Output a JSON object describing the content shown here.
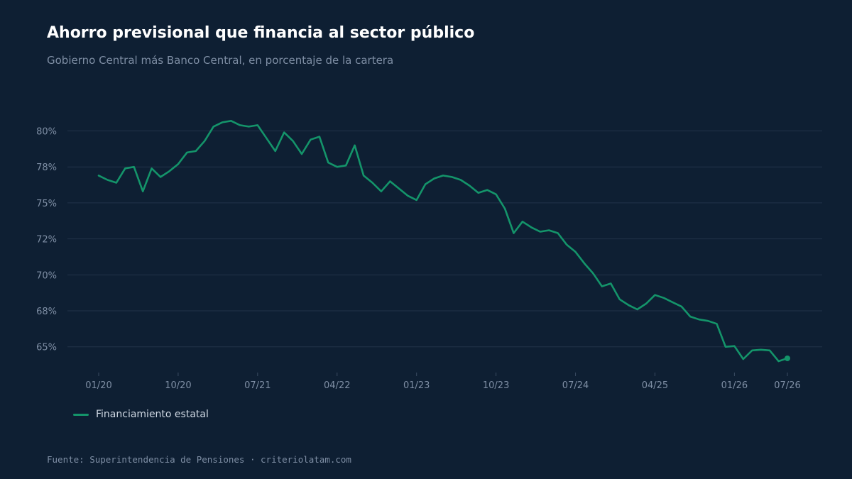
{
  "header": {
    "title": "Ahorro previsional que financia al sector público",
    "subtitle": "Gobierno Central más Banco Central, en porcentaje de la cartera"
  },
  "footer": {
    "source": "Fuente: Superintendencia de Pensiones · criteriolatam.com"
  },
  "colors": {
    "background": "#0e1f33",
    "series": "#14946a",
    "grid": "#22334a",
    "text_muted": "#7e8ea4"
  },
  "chart_data": {
    "type": "line",
    "title": "Ahorro previsional que financia al sector público",
    "subtitle": "Gobierno Central más Banco Central, en porcentaje de la cartera",
    "xlabel": "",
    "ylabel": "",
    "ylim": [
      64.0,
      81.9
    ],
    "xlim": [
      "2020-01",
      "2026-07"
    ],
    "y_ticks": [
      65,
      67.5,
      70,
      72.5,
      75,
      77.5,
      80
    ],
    "y_tick_labels": [
      "65%",
      "68%",
      "70%",
      "72%",
      "75%",
      "78%",
      "80%"
    ],
    "x_ticks": [
      "2020-01",
      "2020-10",
      "2021-07",
      "2022-04",
      "2023-01",
      "2023-10",
      "2024-07",
      "2025-04",
      "2026-01",
      "2026-07"
    ],
    "x_tick_labels": [
      "01/20",
      "10/20",
      "07/21",
      "04/22",
      "01/23",
      "10/23",
      "07/24",
      "04/25",
      "01/26",
      "07/26"
    ],
    "grid": true,
    "legend_position": "bottom-left",
    "end_marker": true,
    "series": [
      {
        "name": "Financiamiento estatal",
        "color": "#14946a",
        "x": [
          "2020-01",
          "2020-02",
          "2020-03",
          "2020-04",
          "2020-05",
          "2020-06",
          "2020-07",
          "2020-08",
          "2020-09",
          "2020-10",
          "2020-11",
          "2020-12",
          "2021-01",
          "2021-02",
          "2021-03",
          "2021-04",
          "2021-05",
          "2021-06",
          "2021-07",
          "2021-08",
          "2021-09",
          "2021-10",
          "2021-11",
          "2021-12",
          "2022-01",
          "2022-02",
          "2022-03",
          "2022-04",
          "2022-05",
          "2022-06",
          "2022-07",
          "2022-08",
          "2022-09",
          "2022-10",
          "2022-11",
          "2022-12",
          "2023-01",
          "2023-02",
          "2023-03",
          "2023-04",
          "2023-05",
          "2023-06",
          "2023-07",
          "2023-08",
          "2023-09",
          "2023-10",
          "2023-11",
          "2023-12",
          "2024-01",
          "2024-02",
          "2024-03",
          "2024-04",
          "2024-05",
          "2024-06",
          "2024-07",
          "2024-08",
          "2024-09",
          "2024-10",
          "2024-11",
          "2024-12",
          "2025-01",
          "2025-02",
          "2025-03",
          "2025-04",
          "2025-05",
          "2025-06",
          "2025-07",
          "2025-08",
          "2025-09",
          "2025-10",
          "2025-11",
          "2025-12",
          "2026-01",
          "2026-02",
          "2026-03",
          "2026-04",
          "2026-05",
          "2026-06",
          "2026-07"
        ],
        "values": [
          76.9,
          76.6,
          76.4,
          77.4,
          77.5,
          75.8,
          77.4,
          76.8,
          77.2,
          77.7,
          78.5,
          78.6,
          79.3,
          80.3,
          80.6,
          80.7,
          80.4,
          80.3,
          80.4,
          79.5,
          78.6,
          79.9,
          79.3,
          78.4,
          79.4,
          79.6,
          77.8,
          77.5,
          77.6,
          79.0,
          76.9,
          76.4,
          75.8,
          76.5,
          76.0,
          75.5,
          75.2,
          76.3,
          76.7,
          76.9,
          76.8,
          76.6,
          76.2,
          75.7,
          75.9,
          75.6,
          74.6,
          72.9,
          73.7,
          73.3,
          73.0,
          73.1,
          72.9,
          72.1,
          71.6,
          70.8,
          70.1,
          69.2,
          69.4,
          68.3,
          67.9,
          67.6,
          68.0,
          68.6,
          68.4,
          68.1,
          67.8,
          67.1,
          66.9,
          66.8,
          66.6,
          65.0,
          65.05,
          64.15,
          64.75,
          64.8,
          64.75,
          64.0,
          64.2
        ]
      }
    ]
  }
}
